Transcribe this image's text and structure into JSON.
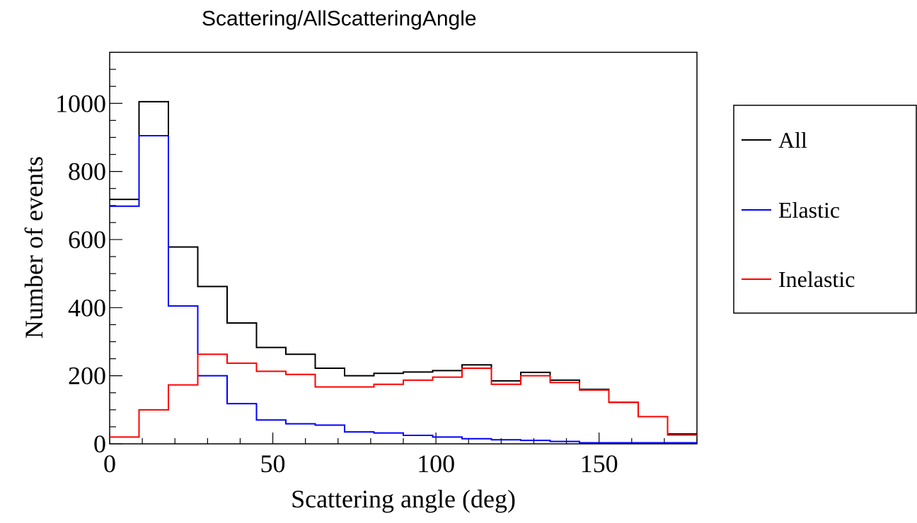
{
  "chart_data": {
    "type": "histogram",
    "title": "Scattering/AllScatteringAngle",
    "xlabel": "Scattering angle (deg)",
    "ylabel": "Number of events",
    "xlim": [
      0,
      180
    ],
    "ylim": [
      0,
      1150
    ],
    "xticks": [
      0,
      50,
      100,
      150
    ],
    "yticks": [
      0,
      200,
      400,
      600,
      800,
      1000
    ],
    "bin_width": 9,
    "bin_edges": [
      0,
      9,
      18,
      27,
      36,
      45,
      54,
      63,
      72,
      81,
      90,
      99,
      108,
      117,
      126,
      135,
      144,
      153,
      162,
      171,
      180
    ],
    "series": [
      {
        "name": "All",
        "color": "#000000",
        "values": [
          718,
          1005,
          578,
          462,
          355,
          283,
          263,
          222,
          200,
          207,
          211,
          215,
          232,
          185,
          210,
          187,
          160,
          122,
          80,
          29
        ]
      },
      {
        "name": "Elastic",
        "color": "#0000ff",
        "values": [
          698,
          905,
          405,
          200,
          118,
          70,
          59,
          55,
          35,
          32,
          25,
          20,
          15,
          12,
          10,
          7,
          3,
          3,
          3,
          3
        ]
      },
      {
        "name": "Inelastic",
        "color": "#ff0000",
        "values": [
          20,
          100,
          173,
          263,
          237,
          213,
          204,
          167,
          167,
          175,
          187,
          196,
          222,
          175,
          200,
          180,
          158,
          122,
          80,
          26
        ]
      }
    ],
    "legend": {
      "position": "right",
      "entries": [
        "All",
        "Elastic",
        "Inelastic"
      ]
    }
  }
}
